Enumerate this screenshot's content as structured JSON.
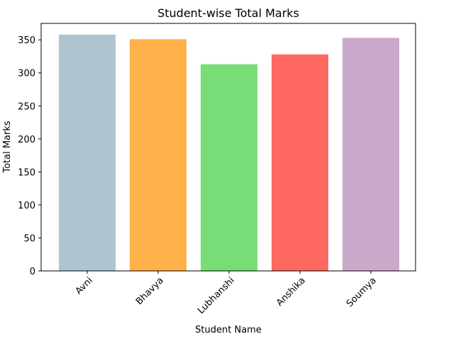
{
  "chart_data": {
    "type": "bar",
    "title": "Student-wise Total Marks",
    "xlabel": "Student Name",
    "ylabel": "Total Marks",
    "categories": [
      "Avni",
      "Bhavya",
      "Lubhanshi",
      "Anshika",
      "Soumya"
    ],
    "values": [
      358,
      351,
      313,
      328,
      353
    ],
    "colors": [
      "#aec5cf",
      "#ffb14a",
      "#77dd77",
      "#ff6961",
      "#cba9cb"
    ],
    "ylim": [
      0,
      374.9
    ],
    "yticks": [
      0,
      50,
      100,
      150,
      200,
      250,
      300,
      350
    ],
    "grid": false,
    "legend": "none"
  }
}
